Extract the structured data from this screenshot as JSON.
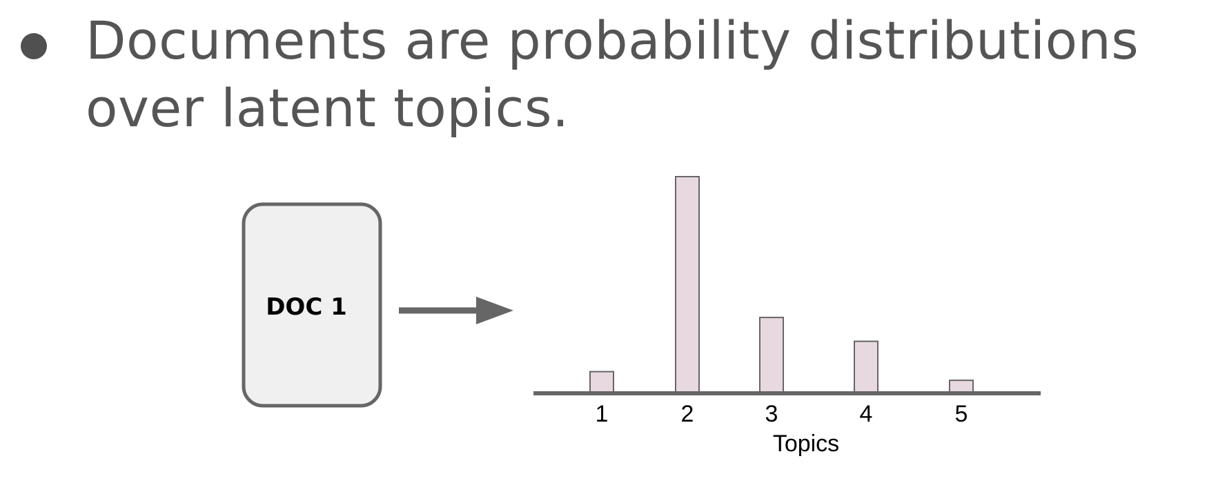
{
  "bullet": {
    "line1": "Documents are probability distributions",
    "line2": "over latent topics."
  },
  "doc": {
    "label": "DOC 1"
  },
  "colors": {
    "text": "#555555",
    "bullet": "#505050",
    "doc_fill": "#f0f0f0",
    "doc_stroke": "#666666",
    "arrow": "#666666",
    "bar_fill": "#e8d9e1",
    "bar_stroke": "#666666",
    "axis": "#666666"
  },
  "chart_data": {
    "type": "bar",
    "categories": [
      "1",
      "2",
      "3",
      "4",
      "5"
    ],
    "values": [
      0.1,
      1.0,
      0.35,
      0.24,
      0.06
    ],
    "xlabel": "Topics",
    "ylabel": "",
    "ylim": [
      0,
      1.0
    ]
  }
}
